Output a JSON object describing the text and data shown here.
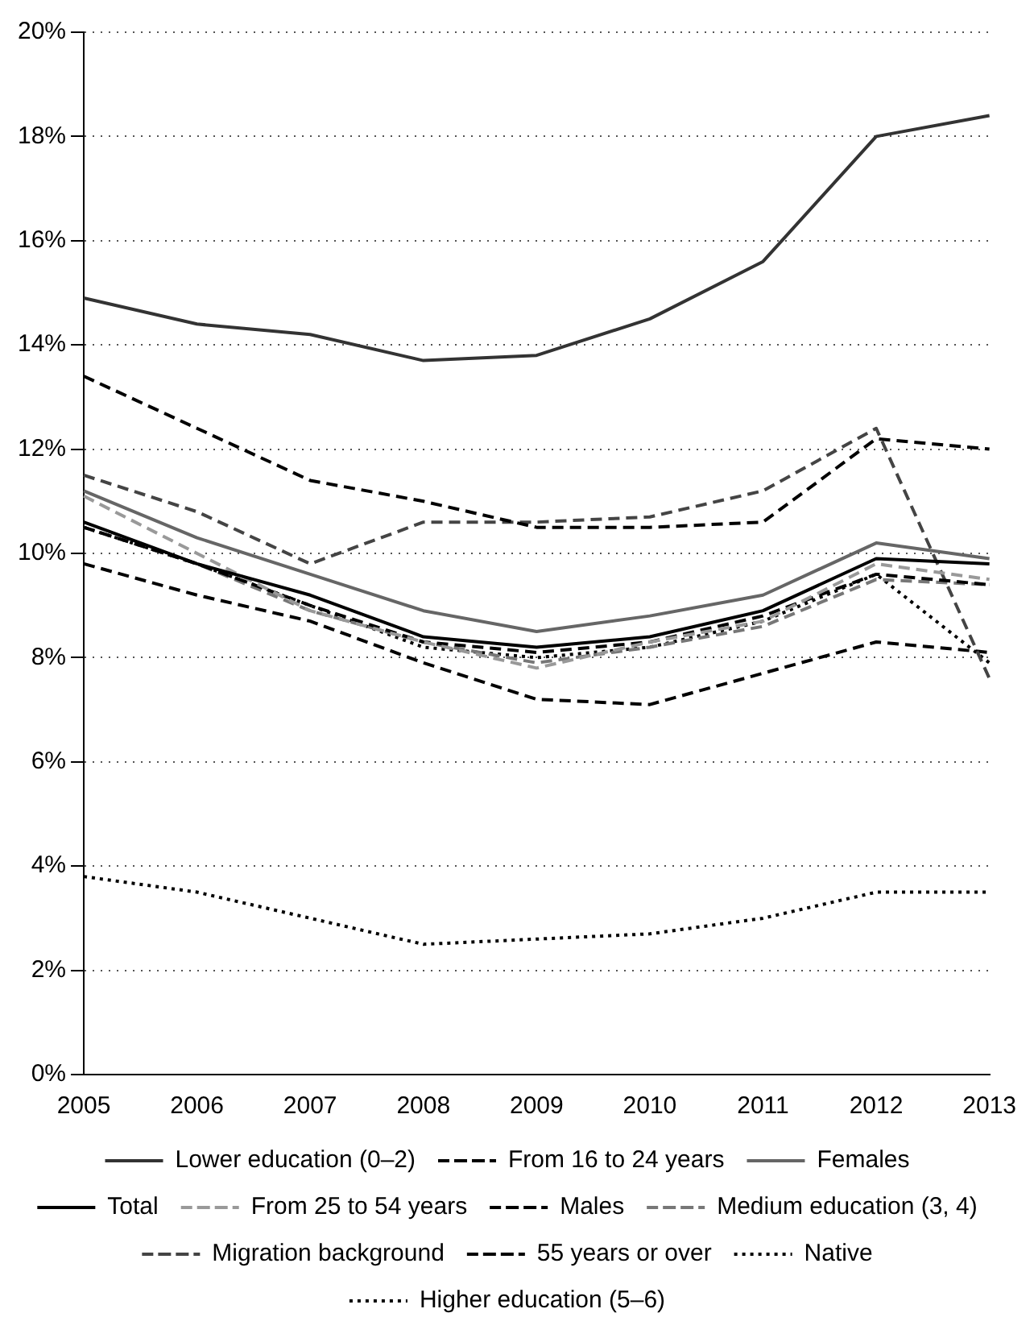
{
  "chart_data": {
    "type": "line",
    "categories": [
      "2005",
      "2006",
      "2007",
      "2008",
      "2009",
      "2010",
      "2011",
      "2012",
      "2013"
    ],
    "ylim": [
      0,
      20
    ],
    "yticks": [
      {
        "value": 0,
        "label": "0%"
      },
      {
        "value": 2,
        "label": "2%"
      },
      {
        "value": 4,
        "label": "4%"
      },
      {
        "value": 6,
        "label": "6%"
      },
      {
        "value": 8,
        "label": "8%"
      },
      {
        "value": 10,
        "label": "10%"
      },
      {
        "value": 12,
        "label": "12%"
      },
      {
        "value": 14,
        "label": "14%"
      },
      {
        "value": 16,
        "label": "16%"
      },
      {
        "value": 18,
        "label": "18%"
      },
      {
        "value": 20,
        "label": "20%"
      }
    ],
    "grid": "y",
    "legend": "bottom",
    "marker": "none",
    "series": [
      {
        "name": "Lower education (0–2)",
        "color": "#333333",
        "line_style": "solid",
        "values": [
          14.9,
          14.4,
          14.2,
          13.7,
          13.8,
          14.5,
          15.6,
          18.0,
          18.4
        ]
      },
      {
        "name": "From 16 to 24 years",
        "color": "#000000",
        "line_style": "dashed",
        "values": [
          13.4,
          12.4,
          11.4,
          11.0,
          10.5,
          10.5,
          10.6,
          12.2,
          12.0
        ]
      },
      {
        "name": "Females",
        "color": "#666666",
        "line_style": "solid",
        "values": [
          11.2,
          10.3,
          9.6,
          8.9,
          8.5,
          8.8,
          9.2,
          10.2,
          9.9
        ]
      },
      {
        "name": "Total",
        "color": "#000000",
        "line_style": "solid",
        "values": [
          10.6,
          9.8,
          9.2,
          8.4,
          8.2,
          8.4,
          8.9,
          9.9,
          9.8
        ]
      },
      {
        "name": "From 25 to 54 years",
        "color": "#999999",
        "line_style": "dashed",
        "values": [
          11.1,
          10.0,
          8.9,
          8.3,
          7.8,
          8.3,
          8.7,
          9.8,
          9.5
        ]
      },
      {
        "name": "Males",
        "color": "#000000",
        "line_style": "dashed",
        "values": [
          10.5,
          9.8,
          9.0,
          8.3,
          8.1,
          8.3,
          8.8,
          9.6,
          9.4
        ]
      },
      {
        "name": "Medium education (3, 4)",
        "color": "#777777",
        "line_style": "dashed",
        "values": [
          10.5,
          9.8,
          8.9,
          8.3,
          7.9,
          8.2,
          8.6,
          9.5,
          9.4
        ]
      },
      {
        "name": "Migration background",
        "color": "#444444",
        "line_style": "dashed",
        "values": [
          11.5,
          10.8,
          9.8,
          10.6,
          10.6,
          10.7,
          11.2,
          12.4,
          7.6
        ]
      },
      {
        "name": "55 years or over",
        "color": "#000000",
        "line_style": "dashed",
        "values": [
          9.8,
          9.2,
          8.7,
          7.9,
          7.2,
          7.1,
          7.7,
          8.3,
          8.1
        ]
      },
      {
        "name": "Native",
        "color": "#000000",
        "line_style": "dotted",
        "values": [
          10.5,
          9.8,
          9.0,
          8.2,
          8.0,
          8.2,
          8.7,
          9.6,
          7.9
        ]
      },
      {
        "name": "Higher education (5–6)",
        "color": "#000000",
        "line_style": "dotted",
        "values": [
          3.8,
          3.5,
          3.0,
          2.5,
          2.6,
          2.7,
          3.0,
          3.5,
          3.5
        ]
      }
    ]
  }
}
